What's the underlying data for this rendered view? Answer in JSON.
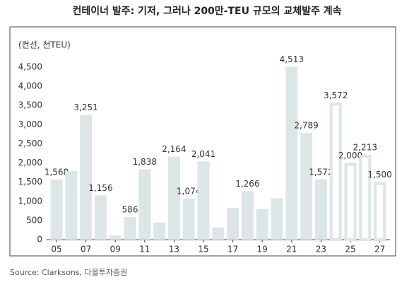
{
  "chart_data": {
    "type": "bar",
    "title": "컨테이너 발주: 기저, 그러나 200만-TEU 규모의 교체발주 계속",
    "y_label": "(컨선, 천TEU)",
    "source": "Source: Clarksons, 다올투자증권",
    "categories": [
      "05",
      null,
      "07",
      null,
      "09",
      null,
      "11",
      null,
      "13",
      null,
      "15",
      null,
      "17",
      null,
      "19",
      null,
      "21",
      null,
      "23",
      null,
      "25",
      null,
      "27"
    ],
    "values": [
      1568,
      1790,
      3251,
      1156,
      110,
      586,
      1838,
      450,
      2164,
      1074,
      2041,
      320,
      830,
      1266,
      800,
      1080,
      4513,
      2789,
      1572,
      3572,
      2000,
      2213,
      1500
    ],
    "value_labels": [
      "1,568",
      null,
      "3,251",
      "1,156",
      null,
      "586",
      "1,838",
      null,
      "2,164",
      "1,074",
      "2,041",
      null,
      null,
      "1,266",
      null,
      null,
      "4,513",
      "2,789",
      "1,572",
      "3,572",
      "2,000",
      "2,213",
      "1,500"
    ],
    "color": "#dce6e6",
    "outlined": [
      false,
      false,
      false,
      false,
      false,
      false,
      false,
      false,
      false,
      false,
      false,
      false,
      false,
      false,
      false,
      false,
      false,
      false,
      false,
      true,
      true,
      true,
      true
    ],
    "ylim": [
      0,
      4500
    ],
    "yticks": [
      0,
      500,
      {
        "value": 1000,
        "label": "1,000"
      },
      {
        "value": 1500,
        "label": "1,500"
      },
      {
        "value": 2000,
        "label": "2,000"
      },
      {
        "value": 2500,
        "label": "2,500"
      },
      {
        "value": 3000,
        "label": "3,000"
      },
      {
        "value": 3500,
        "label": "3,500"
      },
      {
        "value": 4000,
        "label": "4,000"
      },
      {
        "value": 4500,
        "label": "4,500"
      }
    ],
    "grid": false
  }
}
